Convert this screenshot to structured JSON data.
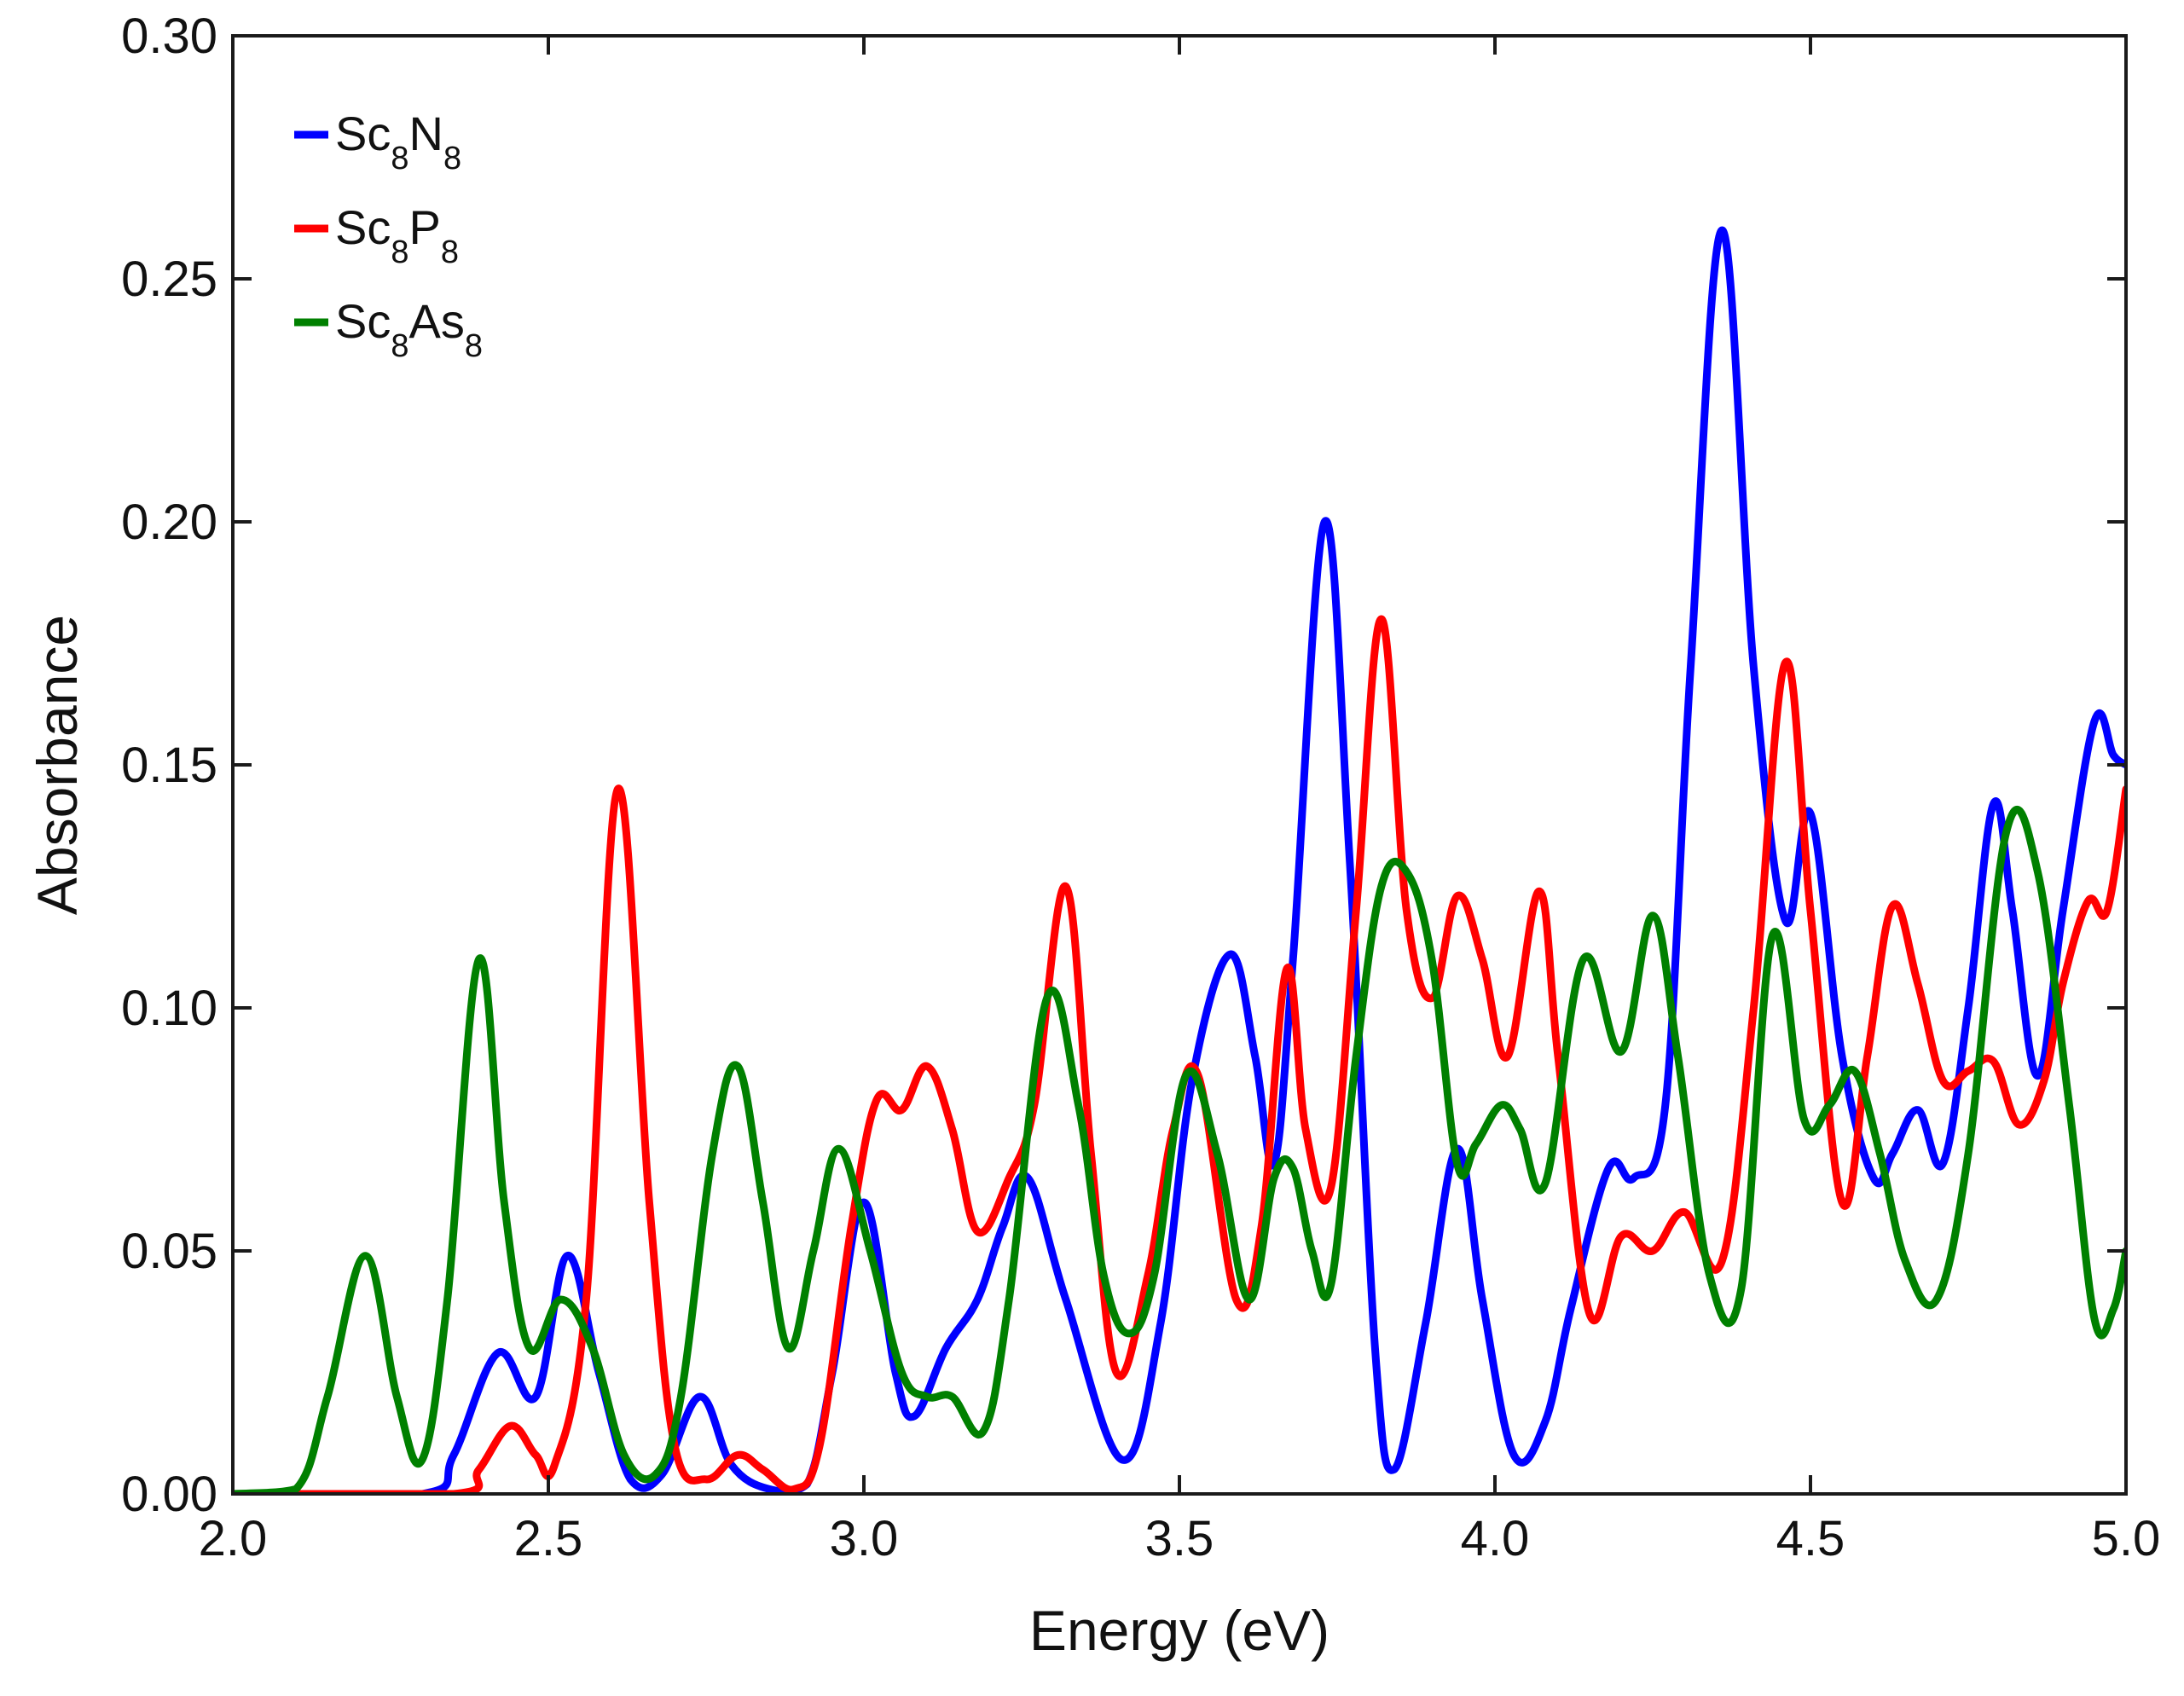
{
  "chart_data": {
    "type": "line",
    "title": "",
    "xlabel": "Energy (eV)",
    "ylabel": "Absorbance",
    "xlim": [
      2.0,
      5.0
    ],
    "ylim": [
      0.0,
      0.3
    ],
    "xticks": [
      "2.0",
      "2.5",
      "3.0",
      "3.5",
      "4.0",
      "4.5",
      "5.0"
    ],
    "yticks": [
      "0.00",
      "0.05",
      "0.10",
      "0.15",
      "0.20",
      "0.25",
      "0.30"
    ],
    "grid": false,
    "legend_position": "top-left",
    "series": [
      {
        "name": "Sc8N8",
        "label_base": "Sc",
        "label_sub1": "8",
        "label_mid": "N",
        "label_sub2": "8",
        "color": "#0000ff",
        "x": [
          2.0,
          2.3,
          2.35,
          2.42,
          2.48,
          2.53,
          2.58,
          2.63,
          2.68,
          2.74,
          2.79,
          2.85,
          2.91,
          2.95,
          3.0,
          3.05,
          3.08,
          3.13,
          3.18,
          3.22,
          3.26,
          3.32,
          3.41,
          3.47,
          3.52,
          3.58,
          3.62,
          3.65,
          3.68,
          3.73,
          3.77,
          3.81,
          3.84,
          3.89,
          3.94,
          3.98,
          4.03,
          4.08,
          4.12,
          4.18,
          4.22,
          4.27,
          4.31,
          4.36,
          4.41,
          4.46,
          4.5,
          4.55,
          4.6,
          4.63,
          4.67,
          4.71,
          4.75,
          4.79,
          4.82,
          4.86,
          4.9,
          4.95,
          4.98,
          5.0
        ],
        "y": [
          0.0,
          0.0,
          0.008,
          0.029,
          0.02,
          0.049,
          0.025,
          0.003,
          0.004,
          0.02,
          0.006,
          0.001,
          0.002,
          0.025,
          0.06,
          0.025,
          0.016,
          0.03,
          0.04,
          0.055,
          0.065,
          0.04,
          0.007,
          0.035,
          0.085,
          0.111,
          0.09,
          0.068,
          0.11,
          0.2,
          0.13,
          0.03,
          0.005,
          0.035,
          0.071,
          0.04,
          0.008,
          0.015,
          0.038,
          0.067,
          0.065,
          0.08,
          0.17,
          0.26,
          0.17,
          0.118,
          0.14,
          0.09,
          0.065,
          0.07,
          0.079,
          0.068,
          0.1,
          0.142,
          0.12,
          0.086,
          0.12,
          0.159,
          0.152,
          0.15
        ]
      },
      {
        "name": "Sc8P8",
        "label_base": "Sc",
        "label_sub1": "8",
        "label_mid": "P",
        "label_sub2": "8",
        "color": "#ff0000",
        "x": [
          2.0,
          2.35,
          2.39,
          2.44,
          2.48,
          2.51,
          2.56,
          2.61,
          2.66,
          2.7,
          2.75,
          2.8,
          2.84,
          2.89,
          2.93,
          2.98,
          3.02,
          3.06,
          3.1,
          3.14,
          3.18,
          3.23,
          3.27,
          3.32,
          3.36,
          3.4,
          3.45,
          3.49,
          3.53,
          3.59,
          3.63,
          3.67,
          3.7,
          3.74,
          3.78,
          3.82,
          3.86,
          3.9,
          3.94,
          3.98,
          4.02,
          4.07,
          4.1,
          4.15,
          4.2,
          4.25,
          4.3,
          4.36,
          4.41,
          4.46,
          4.5,
          4.55,
          4.59,
          4.63,
          4.67,
          4.71,
          4.75,
          4.79,
          4.83,
          4.87,
          4.9,
          4.94,
          4.97,
          5.0
        ],
        "y": [
          0.0,
          0.0,
          0.005,
          0.014,
          0.008,
          0.006,
          0.04,
          0.145,
          0.06,
          0.01,
          0.003,
          0.008,
          0.005,
          0.001,
          0.01,
          0.055,
          0.081,
          0.079,
          0.088,
          0.075,
          0.054,
          0.065,
          0.08,
          0.125,
          0.07,
          0.025,
          0.045,
          0.075,
          0.086,
          0.04,
          0.055,
          0.108,
          0.075,
          0.063,
          0.12,
          0.18,
          0.12,
          0.102,
          0.123,
          0.11,
          0.09,
          0.124,
          0.09,
          0.037,
          0.053,
          0.05,
          0.058,
          0.048,
          0.1,
          0.171,
          0.12,
          0.06,
          0.09,
          0.121,
          0.105,
          0.085,
          0.087,
          0.089,
          0.076,
          0.085,
          0.105,
          0.122,
          0.12,
          0.145
        ]
      },
      {
        "name": "Sc8As8",
        "label_base": "Sc",
        "label_sub1": "8",
        "label_mid": "As",
        "label_sub2": "8",
        "color": "#008000",
        "x": [
          2.0,
          2.1,
          2.15,
          2.21,
          2.26,
          2.3,
          2.34,
          2.39,
          2.43,
          2.47,
          2.52,
          2.57,
          2.62,
          2.67,
          2.71,
          2.76,
          2.8,
          2.84,
          2.88,
          2.92,
          2.96,
          3.01,
          3.06,
          3.1,
          3.14,
          3.19,
          3.23,
          3.29,
          3.34,
          3.38,
          3.42,
          3.46,
          3.51,
          3.56,
          3.61,
          3.65,
          3.68,
          3.71,
          3.74,
          3.78,
          3.82,
          3.86,
          3.9,
          3.94,
          3.97,
          4.01,
          4.04,
          4.08,
          4.14,
          4.2,
          4.25,
          4.29,
          4.34,
          4.39,
          4.44,
          4.49,
          4.53,
          4.57,
          4.61,
          4.65,
          4.7,
          4.75,
          4.81,
          4.86,
          4.91,
          4.95,
          4.98,
          5.0
        ],
        "y": [
          0.0,
          0.001,
          0.02,
          0.049,
          0.02,
          0.007,
          0.04,
          0.11,
          0.06,
          0.03,
          0.04,
          0.03,
          0.008,
          0.004,
          0.02,
          0.07,
          0.088,
          0.06,
          0.03,
          0.05,
          0.071,
          0.05,
          0.025,
          0.02,
          0.02,
          0.013,
          0.04,
          0.102,
          0.08,
          0.045,
          0.033,
          0.045,
          0.086,
          0.07,
          0.04,
          0.065,
          0.067,
          0.05,
          0.043,
          0.09,
          0.125,
          0.128,
          0.11,
          0.068,
          0.072,
          0.08,
          0.075,
          0.064,
          0.11,
          0.091,
          0.119,
          0.09,
          0.045,
          0.042,
          0.115,
          0.077,
          0.08,
          0.087,
          0.07,
          0.048,
          0.04,
          0.07,
          0.136,
          0.128,
          0.08,
          0.036,
          0.038,
          0.05
        ]
      }
    ]
  }
}
